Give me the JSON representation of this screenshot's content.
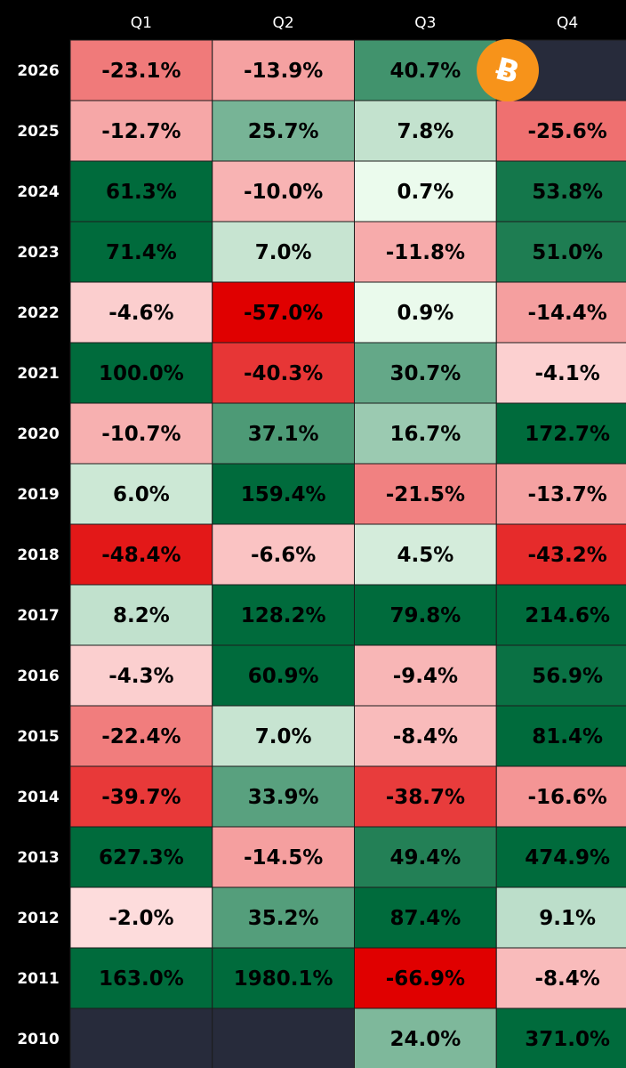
{
  "chart_data": {
    "type": "heatmap",
    "columns": [
      "Q1",
      "Q2",
      "Q3",
      "Q4"
    ],
    "rows": [
      {
        "year": "2026",
        "values": [
          -23.1,
          -13.9,
          40.7,
          null
        ],
        "labels": [
          "-23.1%",
          "-13.9%",
          "40.7%",
          ""
        ]
      },
      {
        "year": "2025",
        "values": [
          -12.7,
          25.7,
          7.8,
          -25.6
        ],
        "labels": [
          "-12.7%",
          "25.7%",
          "7.8%",
          "-25.6%"
        ]
      },
      {
        "year": "2024",
        "values": [
          61.3,
          -10.0,
          0.7,
          53.8
        ],
        "labels": [
          "61.3%",
          "-10.0%",
          "0.7%",
          "53.8%"
        ]
      },
      {
        "year": "2023",
        "values": [
          71.4,
          7.0,
          -11.8,
          51.0
        ],
        "labels": [
          "71.4%",
          "7.0%",
          "-11.8%",
          "51.0%"
        ]
      },
      {
        "year": "2022",
        "values": [
          -4.6,
          -57.0,
          0.9,
          -14.4
        ],
        "labels": [
          "-4.6%",
          "-57.0%",
          "0.9%",
          "-14.4%"
        ]
      },
      {
        "year": "2021",
        "values": [
          100.0,
          -40.3,
          30.7,
          -4.1
        ],
        "labels": [
          "100.0%",
          "-40.3%",
          "30.7%",
          "-4.1%"
        ]
      },
      {
        "year": "2020",
        "values": [
          -10.7,
          37.1,
          16.7,
          172.7
        ],
        "labels": [
          "-10.7%",
          "37.1%",
          "16.7%",
          "172.7%"
        ]
      },
      {
        "year": "2019",
        "values": [
          6.0,
          159.4,
          -21.5,
          -13.7
        ],
        "labels": [
          "6.0%",
          "159.4%",
          "-21.5%",
          "-13.7%"
        ]
      },
      {
        "year": "2018",
        "values": [
          -48.4,
          -6.6,
          4.5,
          -43.2
        ],
        "labels": [
          "-48.4%",
          "-6.6%",
          "4.5%",
          "-43.2%"
        ]
      },
      {
        "year": "2017",
        "values": [
          8.2,
          128.2,
          79.8,
          214.6
        ],
        "labels": [
          "8.2%",
          "128.2%",
          "79.8%",
          "214.6%"
        ]
      },
      {
        "year": "2016",
        "values": [
          -4.3,
          60.9,
          -9.4,
          56.9
        ],
        "labels": [
          "-4.3%",
          "60.9%",
          "-9.4%",
          "56.9%"
        ]
      },
      {
        "year": "2015",
        "values": [
          -22.4,
          7.0,
          -8.4,
          81.4
        ],
        "labels": [
          "-22.4%",
          "7.0%",
          "-8.4%",
          "81.4%"
        ]
      },
      {
        "year": "2014",
        "values": [
          -39.7,
          33.9,
          -38.7,
          -16.6
        ],
        "labels": [
          "-39.7%",
          "33.9%",
          "-38.7%",
          "-16.6%"
        ]
      },
      {
        "year": "2013",
        "values": [
          627.3,
          -14.5,
          49.4,
          474.9
        ],
        "labels": [
          "627.3%",
          "-14.5%",
          "49.4%",
          "474.9%"
        ]
      },
      {
        "year": "2012",
        "values": [
          -2.0,
          35.2,
          87.4,
          9.1
        ],
        "labels": [
          "-2.0%",
          "35.2%",
          "87.4%",
          "9.1%"
        ]
      },
      {
        "year": "2011",
        "values": [
          163.0,
          1980.1,
          -66.9,
          -8.4
        ],
        "labels": [
          "163.0%",
          "1980.1%",
          "-66.9%",
          "-8.4%"
        ]
      },
      {
        "year": "2010",
        "values": [
          null,
          null,
          24.0,
          371.0
        ],
        "labels": [
          "",
          "",
          "24.0%",
          "371.0%"
        ]
      }
    ],
    "color_scale": {
      "negative_strong": "#e00000",
      "negative_light": "#ffeaea",
      "positive_light": "#f2fff2",
      "positive_strong": "#006b3c",
      "empty": "#272b3b"
    },
    "grid": true,
    "logo": {
      "name": "bitcoin-logo",
      "color": "#f7931a"
    }
  }
}
